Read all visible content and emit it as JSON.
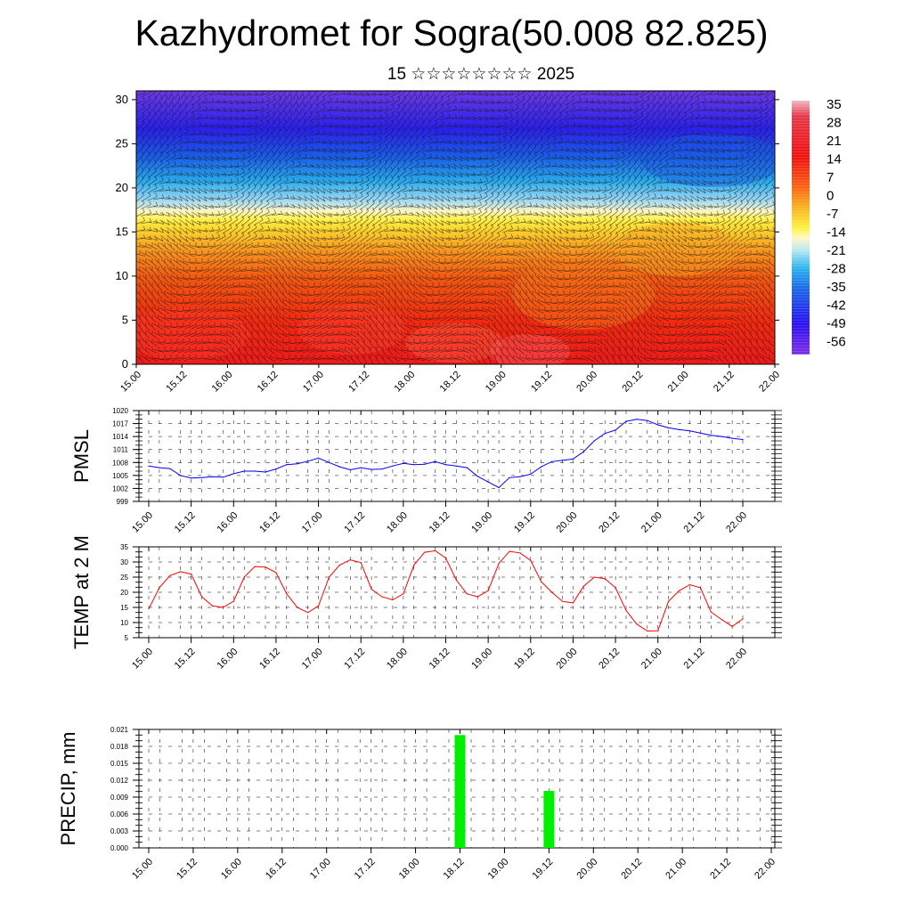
{
  "header": {
    "title": "Kazhydromet for Sogra(50.008 82.825)",
    "subtitle": "15 ☆☆☆☆☆☆☆☆ 2025"
  },
  "chart_data": [
    {
      "type": "heatmap",
      "title": "",
      "xlabel": "",
      "ylabel": "",
      "x_tick_labels": [
        "15.00",
        "15.12",
        "16.00",
        "16.12",
        "17.00",
        "17.12",
        "18.00",
        "18.12",
        "19.00",
        "19.12",
        "20.00",
        "20.12",
        "21.00",
        "21.12",
        "22.00"
      ],
      "y_ticks": [
        0,
        5,
        10,
        15,
        20,
        25,
        30
      ],
      "ylim": [
        0,
        31
      ],
      "colorbar": {
        "labels": [
          35,
          28,
          21,
          14,
          7,
          0,
          -7,
          -14,
          -21,
          -28,
          -35,
          -42,
          -49,
          -56
        ],
        "range": [
          -60,
          38
        ]
      },
      "overlay": "wind barbs",
      "values_description_rows_by_altitude": [
        {
          "altitude": 0,
          "value": 33
        },
        {
          "altitude": 5,
          "value": 28
        },
        {
          "altitude": 10,
          "value": 20
        },
        {
          "altitude": 14,
          "value": 5
        },
        {
          "altitude": 16.5,
          "value": -10
        },
        {
          "altitude": 20,
          "value": -35
        },
        {
          "altitude": 25,
          "value": -48
        },
        {
          "altitude": 30,
          "value": -56
        }
      ]
    },
    {
      "type": "line",
      "ylabel": "PMSL",
      "ylim": [
        999,
        1020
      ],
      "y_ticks": [
        999,
        1002,
        1005,
        1008,
        1011,
        1014,
        1017,
        1020
      ],
      "x_tick_labels": [
        "15.00",
        "15.12",
        "16.00",
        "16.12",
        "17.00",
        "17.12",
        "18.00",
        "18.12",
        "19.00",
        "19.12",
        "20.00",
        "20.12",
        "21.00",
        "21.12",
        "22.00"
      ],
      "series": [
        {
          "color": "#0000ff",
          "x": [
            0,
            3,
            6,
            9,
            12,
            15,
            18,
            21,
            24,
            27,
            30,
            33,
            36,
            39,
            42,
            45,
            48,
            51,
            54,
            57,
            60,
            63,
            66,
            69,
            72,
            75,
            78,
            81,
            84,
            87,
            90,
            93,
            96,
            99,
            102,
            105,
            108,
            111,
            114,
            117,
            120,
            123,
            126,
            129,
            132,
            135,
            138,
            141,
            144,
            147,
            150,
            153,
            156,
            159,
            162,
            165,
            168
          ],
          "values": [
            1007.2,
            1006.8,
            1006.6,
            1005,
            1004.4,
            1004.5,
            1004.7,
            1004.6,
            1005.4,
            1006,
            1006,
            1005.8,
            1006.5,
            1007.5,
            1007.7,
            1008.3,
            1009,
            1008,
            1007,
            1006.3,
            1006.8,
            1006.4,
            1006.5,
            1007.2,
            1007.8,
            1007.5,
            1007.6,
            1008.2,
            1007.5,
            1007.2,
            1006.8,
            1004.8,
            1003.5,
            1002.2,
            1004.5,
            1004.7,
            1005.3,
            1007,
            1008.2,
            1008.5,
            1008.8,
            1010.5,
            1013,
            1014.7,
            1015.5,
            1017.5,
            1018,
            1017.7,
            1016.7,
            1016,
            1015.6,
            1015.3,
            1014.8,
            1014.3,
            1014,
            1013.6,
            1013.3
          ]
        }
      ]
    },
    {
      "type": "line",
      "ylabel": "TEMP at 2 M",
      "ylim": [
        5,
        35
      ],
      "y_ticks": [
        5,
        10,
        15,
        20,
        25,
        30,
        35
      ],
      "x_tick_labels": [
        "15.00",
        "15.12",
        "16.00",
        "16.12",
        "17.00",
        "17.12",
        "18.00",
        "18.12",
        "19.00",
        "19.12",
        "20.00",
        "20.12",
        "21.00",
        "21.12",
        "22.00"
      ],
      "series": [
        {
          "color": "#ff0000",
          "x": [
            0,
            3,
            6,
            9,
            12,
            15,
            18,
            21,
            24,
            27,
            30,
            33,
            36,
            39,
            42,
            45,
            48,
            51,
            54,
            57,
            60,
            63,
            66,
            69,
            72,
            75,
            78,
            81,
            84,
            87,
            90,
            93,
            96,
            99,
            102,
            105,
            108,
            111,
            114,
            117,
            120,
            123,
            126,
            129,
            132,
            135,
            138,
            141,
            144,
            147,
            150,
            153,
            156,
            159,
            162,
            165,
            168
          ],
          "values": [
            14.5,
            21.5,
            25.5,
            26.8,
            26,
            18.5,
            15.5,
            15,
            17,
            25,
            28.5,
            28.3,
            26.5,
            19.5,
            15,
            13.3,
            15.5,
            25,
            29,
            30.7,
            29.8,
            21,
            18.5,
            17.5,
            19.5,
            29,
            33.2,
            33.7,
            31.3,
            24,
            19.5,
            18.5,
            20.5,
            29.5,
            33.5,
            33,
            30.5,
            23.5,
            20,
            17,
            16.5,
            22,
            25,
            24.5,
            21.5,
            14,
            9.5,
            7.2,
            7.3,
            17,
            20.5,
            22.5,
            21.5,
            13.5,
            11,
            8.7,
            11.2
          ]
        }
      ]
    },
    {
      "type": "bar",
      "ylabel": "PRECIP, mm",
      "ylim": [
        0,
        0.021
      ],
      "y_tick_labels": [
        "0.000",
        "0.003",
        "0.006",
        "0.009",
        "0.012",
        "0.015",
        "0.018",
        "0.021"
      ],
      "x_tick_labels": [
        "15.00",
        "15.12",
        "16.00",
        "16.12",
        "17.00",
        "17.12",
        "18.00",
        "18.12",
        "19.00",
        "19.12",
        "20.00",
        "20.12",
        "21.00",
        "21.12",
        "22.00"
      ],
      "color": "#00ee00",
      "bars": [
        {
          "x": 84,
          "value": 0.02
        },
        {
          "x": 108,
          "value": 0.0101
        }
      ]
    }
  ]
}
